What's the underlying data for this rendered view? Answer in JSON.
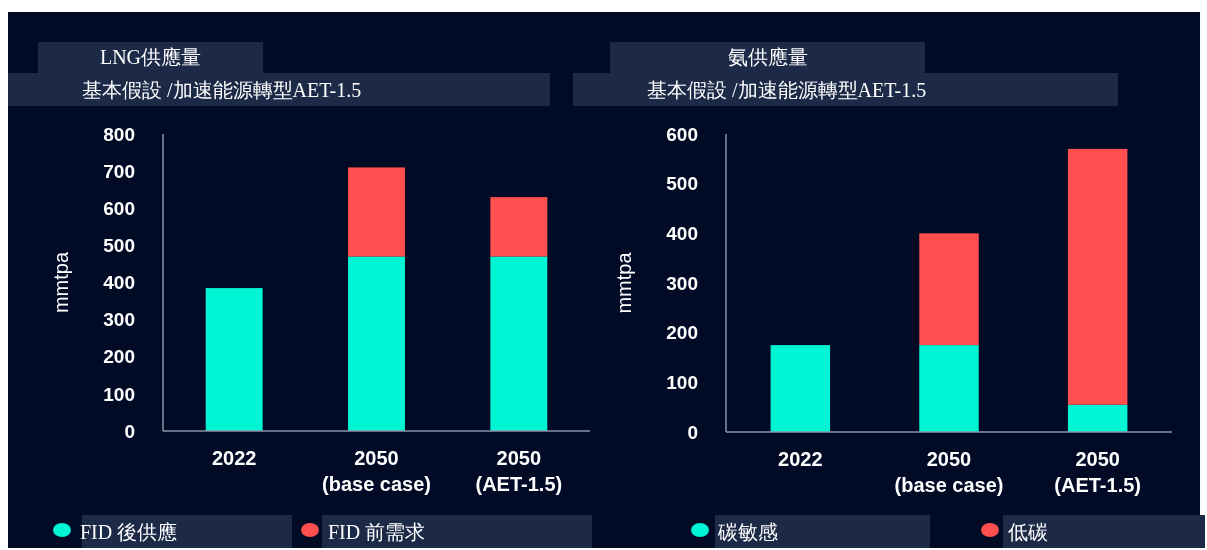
{
  "chart_data": [
    {
      "type": "bar",
      "title": "LNG供應量",
      "subtitle": "基本假設 /加速能源轉型AET-1.5",
      "ylabel": "mmtpa",
      "categories": [
        "2022",
        "2050\n(base case)",
        "2050\n(AET-1.5)"
      ],
      "stacked": true,
      "legend": "bottom",
      "ylim": [
        0,
        800
      ],
      "yticks": [
        0,
        100,
        200,
        300,
        400,
        500,
        600,
        700,
        800
      ],
      "series": [
        {
          "name": "FID 後供應",
          "color": "#00f5d4",
          "values": [
            385,
            470,
            470
          ]
        },
        {
          "name": "FID 前需求",
          "color": "#ff4f4f",
          "values": [
            null,
            240,
            160
          ]
        }
      ]
    },
    {
      "type": "bar",
      "title": "氨供應量",
      "subtitle": "基本假設 /加速能源轉型AET-1.5",
      "ylabel": "mmtpa",
      "categories": [
        "2022",
        "2050\n(base case)",
        "2050\n(AET-1.5)"
      ],
      "stacked": true,
      "legend": "bottom",
      "ylim": [
        0,
        600
      ],
      "yticks": [
        0,
        100,
        200,
        300,
        400,
        500,
        600
      ],
      "series": [
        {
          "name": "碳敏感",
          "color": "#00f5d4",
          "values": [
            175,
            175,
            55
          ]
        },
        {
          "name": "低碳",
          "color": "#ff4f4f",
          "values": [
            null,
            225,
            515
          ]
        }
      ]
    }
  ]
}
